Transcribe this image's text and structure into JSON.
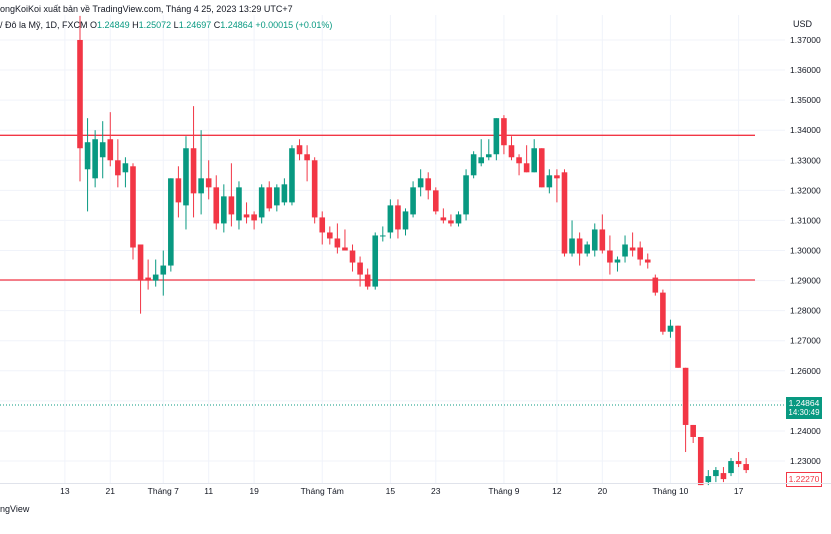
{
  "header": {
    "publisher_text": "ongKoiKoi xuất bản về TradingView.com, Tháng 4 25, 2023 13:29 UTC+7",
    "symbol_text": "/ Đô la Mỹ, 1D, FXCM",
    "open_label": "O",
    "open_value": "1.24849",
    "high_label": "H",
    "high_value": "1.25072",
    "low_label": "L",
    "low_value": "1.24697",
    "close_label": "C",
    "close_value": "1.24864",
    "change_value": "+0.00015 (+0.01%)"
  },
  "footer": {
    "brand_text": "ngView"
  },
  "colors": {
    "up": "#089981",
    "down": "#f23645",
    "level_line": "#f23645",
    "grid": "#f0f3fa"
  },
  "chart_data": {
    "type": "candlestick",
    "currency": "USD",
    "ylim": [
      1.2227,
      1.3783
    ],
    "y_ticks": [
      "1.37000",
      "1.36000",
      "1.35000",
      "1.34000",
      "1.33000",
      "1.32000",
      "1.31000",
      "1.30000",
      "1.29000",
      "1.28000",
      "1.27000",
      "1.26000",
      "1.25000",
      "1.24000",
      "1.23000"
    ],
    "x_ticks": [
      {
        "label": "13",
        "index": -2
      },
      {
        "label": "21",
        "index": 4
      },
      {
        "label": "Tháng 7",
        "index": 11
      },
      {
        "label": "11",
        "index": 17
      },
      {
        "label": "19",
        "index": 23
      },
      {
        "label": "Tháng Tám",
        "index": 32
      },
      {
        "label": "15",
        "index": 41
      },
      {
        "label": "23",
        "index": 47
      },
      {
        "label": "Tháng 9",
        "index": 56
      },
      {
        "label": "12",
        "index": 63
      },
      {
        "label": "20",
        "index": 69
      },
      {
        "label": "Tháng 10",
        "index": 78
      },
      {
        "label": "17",
        "index": 87
      }
    ],
    "horizontal_levels": [
      1.3383,
      1.2902
    ],
    "current_price": "1.24864",
    "current_price_value": 1.24864,
    "countdown": "14:30:49",
    "low_marker": "1.22270",
    "low_marker_value": 1.2227,
    "candles": [
      {
        "o": 1.37,
        "h": 1.378,
        "l": 1.323,
        "c": 1.334
      },
      {
        "o": 1.327,
        "h": 1.344,
        "l": 1.313,
        "c": 1.336
      },
      {
        "o": 1.324,
        "h": 1.34,
        "l": 1.321,
        "c": 1.337
      },
      {
        "o": 1.331,
        "h": 1.343,
        "l": 1.324,
        "c": 1.336
      },
      {
        "o": 1.337,
        "h": 1.346,
        "l": 1.328,
        "c": 1.33
      },
      {
        "o": 1.33,
        "h": 1.337,
        "l": 1.321,
        "c": 1.325
      },
      {
        "o": 1.326,
        "h": 1.331,
        "l": 1.321,
        "c": 1.329
      },
      {
        "o": 1.328,
        "h": 1.329,
        "l": 1.297,
        "c": 1.301
      },
      {
        "o": 1.302,
        "h": 1.302,
        "l": 1.279,
        "c": 1.29
      },
      {
        "o": 1.291,
        "h": 1.297,
        "l": 1.287,
        "c": 1.29
      },
      {
        "o": 1.29,
        "h": 1.297,
        "l": 1.288,
        "c": 1.292
      },
      {
        "o": 1.292,
        "h": 1.3,
        "l": 1.285,
        "c": 1.295
      },
      {
        "o": 1.295,
        "h": 1.324,
        "l": 1.293,
        "c": 1.324
      },
      {
        "o": 1.324,
        "h": 1.328,
        "l": 1.311,
        "c": 1.316
      },
      {
        "o": 1.315,
        "h": 1.338,
        "l": 1.307,
        "c": 1.334
      },
      {
        "o": 1.334,
        "h": 1.348,
        "l": 1.311,
        "c": 1.319
      },
      {
        "o": 1.319,
        "h": 1.34,
        "l": 1.312,
        "c": 1.324
      },
      {
        "o": 1.324,
        "h": 1.33,
        "l": 1.317,
        "c": 1.321
      },
      {
        "o": 1.321,
        "h": 1.325,
        "l": 1.307,
        "c": 1.309
      },
      {
        "o": 1.309,
        "h": 1.322,
        "l": 1.306,
        "c": 1.318
      },
      {
        "o": 1.318,
        "h": 1.329,
        "l": 1.308,
        "c": 1.312
      },
      {
        "o": 1.31,
        "h": 1.323,
        "l": 1.307,
        "c": 1.321
      },
      {
        "o": 1.312,
        "h": 1.316,
        "l": 1.309,
        "c": 1.311
      },
      {
        "o": 1.312,
        "h": 1.313,
        "l": 1.307,
        "c": 1.31
      },
      {
        "o": 1.311,
        "h": 1.322,
        "l": 1.309,
        "c": 1.321
      },
      {
        "o": 1.321,
        "h": 1.323,
        "l": 1.313,
        "c": 1.314
      },
      {
        "o": 1.315,
        "h": 1.322,
        "l": 1.313,
        "c": 1.321
      },
      {
        "o": 1.316,
        "h": 1.324,
        "l": 1.315,
        "c": 1.322
      },
      {
        "o": 1.316,
        "h": 1.335,
        "l": 1.315,
        "c": 1.334
      },
      {
        "o": 1.335,
        "h": 1.337,
        "l": 1.33,
        "c": 1.332
      },
      {
        "o": 1.332,
        "h": 1.335,
        "l": 1.323,
        "c": 1.33
      },
      {
        "o": 1.33,
        "h": 1.331,
        "l": 1.309,
        "c": 1.311
      },
      {
        "o": 1.311,
        "h": 1.313,
        "l": 1.302,
        "c": 1.306
      },
      {
        "o": 1.306,
        "h": 1.308,
        "l": 1.302,
        "c": 1.304
      },
      {
        "o": 1.304,
        "h": 1.309,
        "l": 1.299,
        "c": 1.301
      },
      {
        "o": 1.301,
        "h": 1.307,
        "l": 1.3,
        "c": 1.3
      },
      {
        "o": 1.3,
        "h": 1.302,
        "l": 1.293,
        "c": 1.296
      },
      {
        "o": 1.296,
        "h": 1.298,
        "l": 1.288,
        "c": 1.292
      },
      {
        "o": 1.292,
        "h": 1.294,
        "l": 1.287,
        "c": 1.288
      },
      {
        "o": 1.288,
        "h": 1.306,
        "l": 1.287,
        "c": 1.305
      },
      {
        "o": 1.305,
        "h": 1.308,
        "l": 1.303,
        "c": 1.305
      },
      {
        "o": 1.306,
        "h": 1.317,
        "l": 1.304,
        "c": 1.315
      },
      {
        "o": 1.315,
        "h": 1.317,
        "l": 1.304,
        "c": 1.307
      },
      {
        "o": 1.307,
        "h": 1.314,
        "l": 1.305,
        "c": 1.313
      },
      {
        "o": 1.312,
        "h": 1.323,
        "l": 1.311,
        "c": 1.321
      },
      {
        "o": 1.321,
        "h": 1.327,
        "l": 1.318,
        "c": 1.324
      },
      {
        "o": 1.324,
        "h": 1.326,
        "l": 1.317,
        "c": 1.32
      },
      {
        "o": 1.32,
        "h": 1.321,
        "l": 1.312,
        "c": 1.313
      },
      {
        "o": 1.311,
        "h": 1.314,
        "l": 1.309,
        "c": 1.31
      },
      {
        "o": 1.31,
        "h": 1.312,
        "l": 1.308,
        "c": 1.309
      },
      {
        "o": 1.309,
        "h": 1.313,
        "l": 1.308,
        "c": 1.312
      },
      {
        "o": 1.312,
        "h": 1.327,
        "l": 1.31,
        "c": 1.325
      },
      {
        "o": 1.325,
        "h": 1.333,
        "l": 1.324,
        "c": 1.332
      },
      {
        "o": 1.329,
        "h": 1.337,
        "l": 1.328,
        "c": 1.331
      },
      {
        "o": 1.331,
        "h": 1.337,
        "l": 1.33,
        "c": 1.332
      },
      {
        "o": 1.332,
        "h": 1.344,
        "l": 1.33,
        "c": 1.344
      },
      {
        "o": 1.344,
        "h": 1.345,
        "l": 1.332,
        "c": 1.335
      },
      {
        "o": 1.335,
        "h": 1.338,
        "l": 1.33,
        "c": 1.331
      },
      {
        "o": 1.331,
        "h": 1.332,
        "l": 1.325,
        "c": 1.329
      },
      {
        "o": 1.329,
        "h": 1.335,
        "l": 1.326,
        "c": 1.326
      },
      {
        "o": 1.326,
        "h": 1.337,
        "l": 1.326,
        "c": 1.334
      },
      {
        "o": 1.334,
        "h": 1.334,
        "l": 1.321,
        "c": 1.321
      },
      {
        "o": 1.321,
        "h": 1.327,
        "l": 1.319,
        "c": 1.325
      },
      {
        "o": 1.325,
        "h": 1.327,
        "l": 1.316,
        "c": 1.324
      },
      {
        "o": 1.326,
        "h": 1.327,
        "l": 1.298,
        "c": 1.299
      },
      {
        "o": 1.299,
        "h": 1.31,
        "l": 1.298,
        "c": 1.304
      },
      {
        "o": 1.304,
        "h": 1.306,
        "l": 1.295,
        "c": 1.299
      },
      {
        "o": 1.299,
        "h": 1.303,
        "l": 1.298,
        "c": 1.302
      },
      {
        "o": 1.3,
        "h": 1.309,
        "l": 1.298,
        "c": 1.307
      },
      {
        "o": 1.307,
        "h": 1.312,
        "l": 1.299,
        "c": 1.3
      },
      {
        "o": 1.3,
        "h": 1.305,
        "l": 1.292,
        "c": 1.296
      },
      {
        "o": 1.296,
        "h": 1.298,
        "l": 1.293,
        "c": 1.297
      },
      {
        "o": 1.298,
        "h": 1.305,
        "l": 1.296,
        "c": 1.302
      },
      {
        "o": 1.301,
        "h": 1.306,
        "l": 1.298,
        "c": 1.3
      },
      {
        "o": 1.301,
        "h": 1.303,
        "l": 1.295,
        "c": 1.297
      },
      {
        "o": 1.297,
        "h": 1.299,
        "l": 1.294,
        "c": 1.296
      },
      {
        "o": 1.291,
        "h": 1.292,
        "l": 1.285,
        "c": 1.286
      },
      {
        "o": 1.286,
        "h": 1.287,
        "l": 1.272,
        "c": 1.273
      },
      {
        "o": 1.273,
        "h": 1.277,
        "l": 1.271,
        "c": 1.275
      },
      {
        "o": 1.275,
        "h": 1.275,
        "l": 1.261,
        "c": 1.261
      },
      {
        "o": 1.261,
        "h": 1.261,
        "l": 1.233,
        "c": 1.242
      },
      {
        "o": 1.242,
        "h": 1.242,
        "l": 1.236,
        "c": 1.238
      },
      {
        "o": 1.238,
        "h": 1.238,
        "l": 1.222,
        "c": 1.222
      },
      {
        "o": 1.223,
        "h": 1.227,
        "l": 1.222,
        "c": 1.225
      },
      {
        "o": 1.225,
        "h": 1.228,
        "l": 1.223,
        "c": 1.227
      },
      {
        "o": 1.226,
        "h": 1.228,
        "l": 1.223,
        "c": 1.224
      },
      {
        "o": 1.226,
        "h": 1.231,
        "l": 1.225,
        "c": 1.23
      },
      {
        "o": 1.23,
        "h": 1.233,
        "l": 1.228,
        "c": 1.229
      },
      {
        "o": 1.229,
        "h": 1.231,
        "l": 1.226,
        "c": 1.227
      }
    ]
  }
}
